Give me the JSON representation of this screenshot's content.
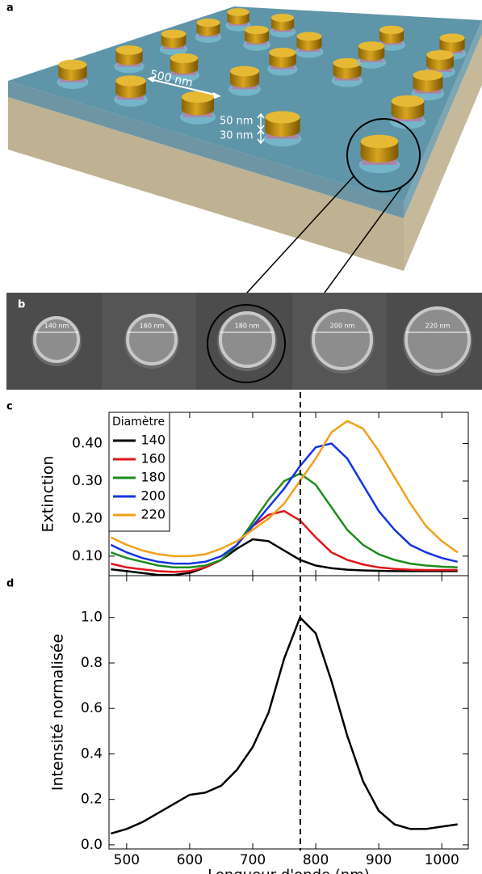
{
  "panel_labels": [
    "a",
    "b",
    "c",
    "d"
  ],
  "schematic": {
    "labels": [
      "500 nm",
      "50 nm",
      "30 nm"
    ]
  },
  "sem": {
    "labels": [
      "140 nm",
      "160 nm",
      "180 nm",
      "200 nm",
      "220 nm"
    ]
  },
  "chart_data": [
    {
      "type": "line",
      "ylabel": "Extinction",
      "legend_title": "Diamètre",
      "legend": "upper left",
      "x": [
        475,
        500,
        525,
        550,
        575,
        600,
        625,
        650,
        675,
        700,
        725,
        750,
        775,
        800,
        825,
        850,
        875,
        900,
        925,
        950,
        975,
        1000,
        1025
      ],
      "xlim": [
        472,
        1042
      ],
      "xticks": [
        500,
        600,
        700,
        800,
        900,
        1000
      ],
      "ylim": [
        0.048,
        0.483
      ],
      "yticks": [
        {
          "value": 0.1,
          "label": "0.10"
        },
        {
          "value": 0.2,
          "label": "0.20"
        },
        {
          "value": 0.3,
          "label": "0.30"
        },
        {
          "value": 0.4,
          "label": "0.40"
        }
      ],
      "series": [
        {
          "name": "140",
          "color": "#000000",
          "values": [
            0.065,
            0.06,
            0.055,
            0.05,
            0.05,
            0.055,
            0.07,
            0.09,
            0.12,
            0.145,
            0.14,
            0.115,
            0.09,
            0.075,
            0.068,
            0.064,
            0.062,
            0.061,
            0.06,
            0.06,
            0.06,
            0.06,
            0.06
          ]
        },
        {
          "name": "160",
          "color": "#e0141b",
          "values": [
            0.08,
            0.07,
            0.065,
            0.06,
            0.058,
            0.06,
            0.07,
            0.09,
            0.13,
            0.18,
            0.21,
            0.22,
            0.195,
            0.15,
            0.11,
            0.09,
            0.078,
            0.07,
            0.066,
            0.064,
            0.063,
            0.063,
            0.063
          ]
        },
        {
          "name": "180",
          "color": "#1e8c1e",
          "values": [
            0.11,
            0.095,
            0.085,
            0.075,
            0.07,
            0.07,
            0.075,
            0.09,
            0.13,
            0.19,
            0.25,
            0.3,
            0.32,
            0.29,
            0.23,
            0.17,
            0.13,
            0.105,
            0.09,
            0.08,
            0.075,
            0.072,
            0.07
          ]
        },
        {
          "name": "200",
          "color": "#1434e0",
          "values": [
            0.13,
            0.11,
            0.095,
            0.085,
            0.08,
            0.08,
            0.085,
            0.1,
            0.13,
            0.18,
            0.23,
            0.28,
            0.34,
            0.39,
            0.4,
            0.36,
            0.29,
            0.22,
            0.17,
            0.13,
            0.11,
            0.095,
            0.085
          ]
        },
        {
          "name": "220",
          "color": "#f2a01a",
          "values": [
            0.15,
            0.13,
            0.115,
            0.105,
            0.1,
            0.1,
            0.105,
            0.12,
            0.14,
            0.17,
            0.2,
            0.24,
            0.3,
            0.36,
            0.43,
            0.46,
            0.44,
            0.38,
            0.31,
            0.24,
            0.18,
            0.14,
            0.11
          ]
        }
      ]
    },
    {
      "type": "line",
      "ylabel": "Intensité normalisée",
      "xlabel": "Longueur d'onde (nm)",
      "color": "#000000",
      "x": [
        475,
        500,
        525,
        550,
        575,
        600,
        625,
        650,
        675,
        700,
        725,
        750,
        775,
        800,
        825,
        850,
        875,
        900,
        925,
        950,
        975,
        1000,
        1025
      ],
      "values": [
        0.05,
        0.07,
        0.1,
        0.14,
        0.18,
        0.22,
        0.23,
        0.26,
        0.33,
        0.43,
        0.58,
        0.82,
        1.0,
        0.93,
        0.72,
        0.48,
        0.28,
        0.15,
        0.09,
        0.07,
        0.07,
        0.08,
        0.09
      ],
      "xlim": [
        472,
        1042
      ],
      "xticks": [
        500,
        600,
        700,
        800,
        900,
        1000
      ],
      "ylim": [
        -0.018,
        1.184
      ],
      "yticks": [
        {
          "value": 0,
          "label": "0.0"
        },
        {
          "value": 0.2,
          "label": "0.2"
        },
        {
          "value": 0.4,
          "label": "0.4"
        },
        {
          "value": 0.6,
          "label": "0.6"
        },
        {
          "value": 0.8,
          "label": "0.8"
        },
        {
          "value": 1.0,
          "label": "1.0"
        }
      ]
    }
  ]
}
